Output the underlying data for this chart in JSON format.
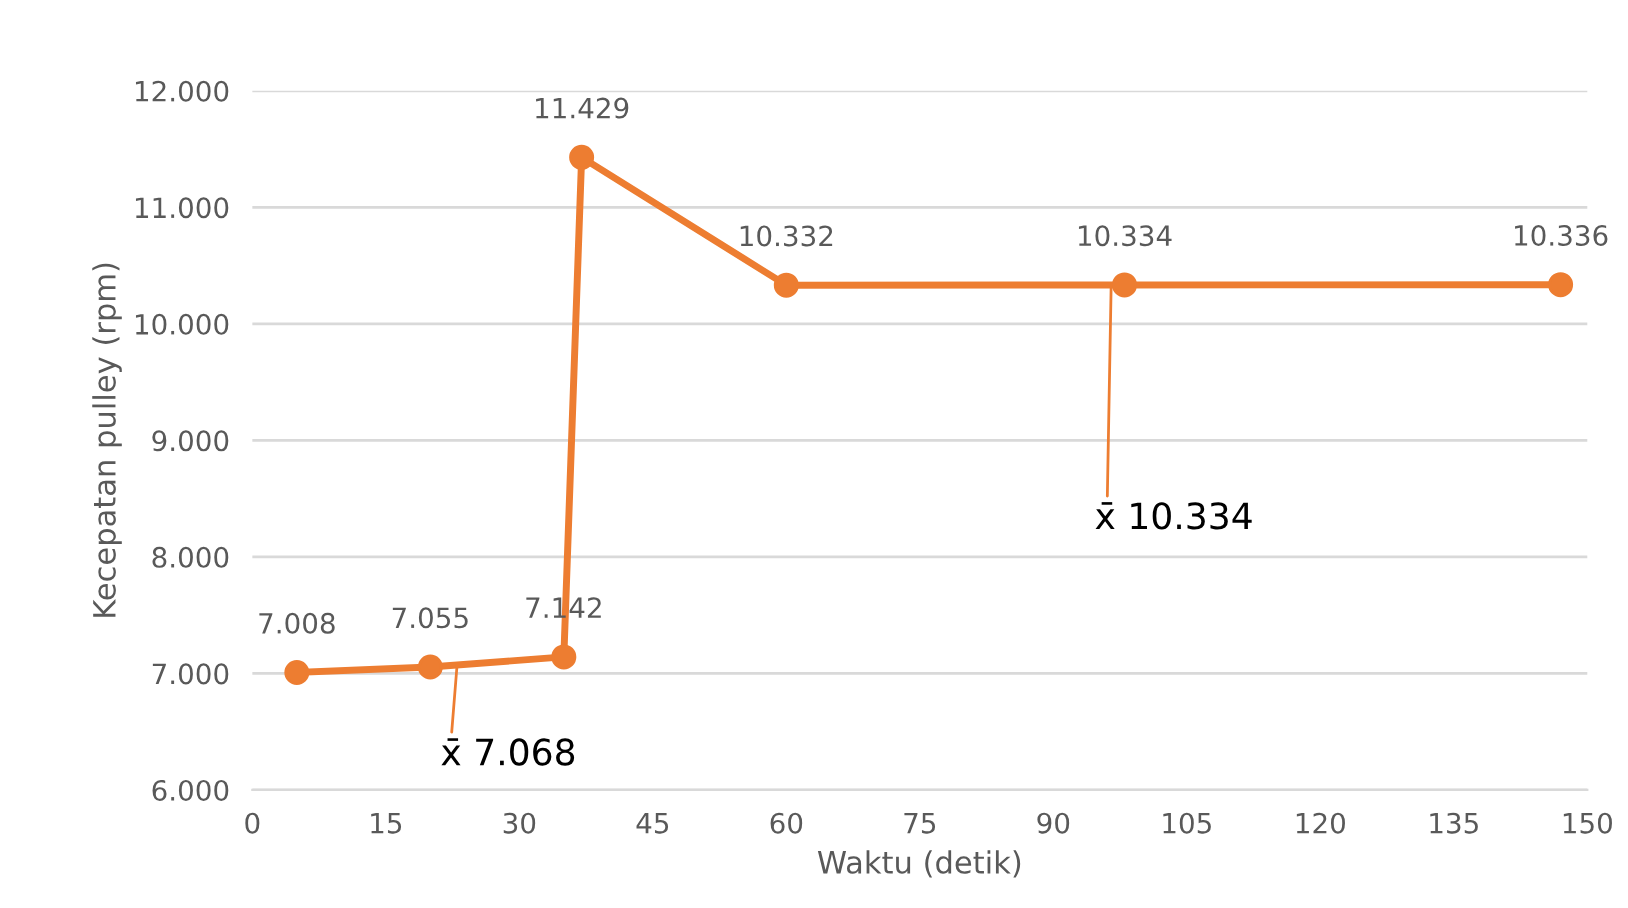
{
  "chart_data": {
    "type": "line",
    "xlabel": "Waktu (detik)",
    "ylabel": "Kecepatan pulley (rpm)",
    "series": [
      {
        "color": "#ed7d31",
        "x": [
          5,
          20,
          35,
          37,
          60,
          98,
          147
        ],
        "values": [
          7008,
          7055,
          7142,
          11429,
          10332,
          10334,
          10336
        ],
        "value_labels": [
          "7.008",
          "7.055",
          "7.142",
          "11.429",
          "10.332",
          "10.334",
          "10.336"
        ]
      }
    ],
    "marker": "circle",
    "line_style": "solid",
    "grid": "y",
    "xlim": [
      0,
      150
    ],
    "xticks": [
      0,
      15,
      30,
      45,
      60,
      75,
      90,
      105,
      120,
      135,
      150
    ],
    "ylim": [
      6000,
      12000
    ],
    "yticks": [
      {
        "value": 6000,
        "label": "6.000"
      },
      {
        "value": 7000,
        "label": "7.000"
      },
      {
        "value": 8000,
        "label": "8.000"
      },
      {
        "value": 9000,
        "label": "9.000"
      },
      {
        "value": 10000,
        "label": "10.000"
      },
      {
        "value": 11000,
        "label": "11.000"
      },
      {
        "value": 12000,
        "label": "12.000"
      }
    ],
    "annotations": [
      {
        "text": "x̄ 7.068",
        "x": 23,
        "y": 7068
      },
      {
        "text": "x̄ 10.334",
        "x": 96.5,
        "y": 10334
      }
    ]
  }
}
